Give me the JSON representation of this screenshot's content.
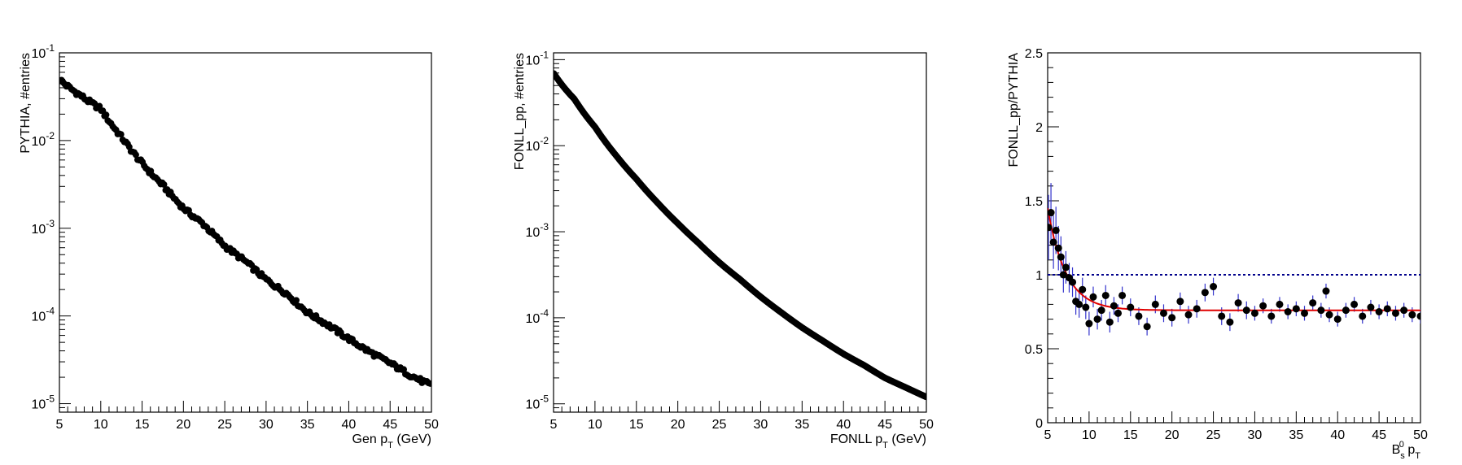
{
  "chart_data": [
    {
      "type": "scatter",
      "panel": "left",
      "xlabel_main": "Gen p",
      "xlabel_sub": "T",
      "xlabel_tail": " (GeV)",
      "ylabel": "PYTHIA, #entries",
      "xlim": [
        5,
        50
      ],
      "ylim": [
        8e-06,
        0.1
      ],
      "ylog": true,
      "x_ticks": [
        "5",
        "10",
        "15",
        "20",
        "25",
        "30",
        "35",
        "40",
        "45",
        "50"
      ],
      "y_ticks": [
        {
          "base": "10",
          "exp": "-1",
          "value": 0.1
        },
        {
          "base": "10",
          "exp": "-2",
          "value": 0.01
        },
        {
          "base": "10",
          "exp": "-3",
          "value": 0.001
        },
        {
          "base": "10",
          "exp": "-4",
          "value": 0.0001
        },
        {
          "base": "10",
          "exp": "-5",
          "value": 1e-05
        }
      ],
      "series": [
        {
          "marker_color": "#000000",
          "model": "power-law",
          "x": [
            5.0,
            7.5,
            10.0,
            12.5,
            15.0,
            17.5,
            20.0,
            22.5,
            25.0,
            27.5,
            30.0,
            32.5,
            35.0,
            37.5,
            40.0,
            42.5,
            45.0,
            47.5,
            50.0
          ],
          "y": [
            0.05,
            0.033,
            0.023,
            0.011,
            0.0055,
            0.0031,
            0.0017,
            0.0011,
            0.00063,
            0.00042,
            0.00026,
            0.00018,
            0.00011,
            7.9e-05,
            5.5e-05,
            3.9e-05,
            2.9e-05,
            2.1e-05,
            1.6e-05
          ]
        }
      ]
    },
    {
      "type": "scatter",
      "panel": "middle",
      "xlabel_main": "FONLL p",
      "xlabel_sub": "T",
      "xlabel_tail": " (GeV)",
      "ylabel": "FONLL_pp, #entries",
      "xlim": [
        5,
        50
      ],
      "ylim": [
        8e-06,
        0.12
      ],
      "ylog": true,
      "x_ticks": [
        "5",
        "10",
        "15",
        "20",
        "25",
        "30",
        "35",
        "40",
        "45",
        "50"
      ],
      "y_ticks": [
        {
          "base": "10",
          "exp": "-1",
          "value": 0.1
        },
        {
          "base": "10",
          "exp": "-2",
          "value": 0.01
        },
        {
          "base": "10",
          "exp": "-3",
          "value": 0.001
        },
        {
          "base": "10",
          "exp": "-4",
          "value": 0.0001
        },
        {
          "base": "10",
          "exp": "-5",
          "value": 1e-05
        }
      ],
      "series": [
        {
          "marker_color": "#000000",
          "model": "smooth",
          "x": [
            5.0,
            7.5,
            10.0,
            12.5,
            15.0,
            17.5,
            20.0,
            22.5,
            25.0,
            27.5,
            30.0,
            32.5,
            35.0,
            37.5,
            40.0,
            42.5,
            45.0,
            47.5,
            50.0
          ],
          "y": [
            0.07,
            0.035,
            0.0165,
            0.0078,
            0.0041,
            0.0022,
            0.00125,
            0.00074,
            0.00044,
            0.00028,
            0.000175,
            0.000115,
            7.7e-05,
            5.4e-05,
            3.8e-05,
            2.8e-05,
            2e-05,
            1.55e-05,
            1.2e-05
          ]
        }
      ]
    },
    {
      "type": "scatter",
      "panel": "right",
      "xlabel_main": "B",
      "xlabel_sub": "s",
      "xlabel_sup": "0",
      "xlabel_tail": " p",
      "xlabel_tail_sub": "T",
      "ylabel": "FONLL_pp/PYTHIA",
      "xlim": [
        5,
        50
      ],
      "ylim": [
        0,
        2.5
      ],
      "ylog": false,
      "x_ticks": [
        "5",
        "10",
        "15",
        "20",
        "25",
        "30",
        "35",
        "40",
        "45",
        "50"
      ],
      "y_ticks": [
        {
          "label": "0",
          "value": 0
        },
        {
          "label": "0.5",
          "value": 0.5
        },
        {
          "label": "1",
          "value": 1
        },
        {
          "label": "1.5",
          "value": 1.5
        },
        {
          "label": "2",
          "value": 2
        },
        {
          "label": "2.5",
          "value": 2.5
        }
      ],
      "reference_line": {
        "y": 1.0,
        "color": "#00008b",
        "style": "dotted"
      },
      "fit_curve": {
        "color": "#e00000",
        "model": "exponential-plateau",
        "y_at_start": 1.45,
        "plateau": 0.76,
        "decay_length_gev": 2.2
      },
      "series": [
        {
          "marker_color": "#000000",
          "error_color": "#3333cc",
          "x": [
            5.1,
            5.4,
            5.7,
            6.0,
            6.3,
            6.6,
            6.9,
            7.2,
            7.6,
            8.0,
            8.4,
            8.8,
            9.2,
            9.6,
            10.0,
            10.5,
            11.0,
            11.5,
            12.0,
            12.5,
            13.0,
            13.5,
            14.0,
            15.0,
            16.0,
            17.0,
            18.0,
            19.0,
            20.0,
            21.0,
            22.0,
            23.0,
            24.0,
            25.0,
            26.0,
            27.0,
            28.0,
            29.0,
            30.0,
            31.0,
            32.0,
            33.0,
            34.0,
            35.0,
            36.0,
            37.0,
            38.0,
            38.6,
            39.0,
            40.0,
            41.0,
            42.0,
            43.0,
            44.0,
            45.0,
            46.0,
            47.0,
            48.0,
            49.0,
            50.0
          ],
          "y": [
            1.32,
            1.42,
            1.22,
            1.3,
            1.18,
            1.12,
            1.0,
            1.05,
            0.98,
            0.95,
            0.82,
            0.8,
            0.9,
            0.78,
            0.67,
            0.85,
            0.7,
            0.76,
            0.86,
            0.68,
            0.79,
            0.74,
            0.86,
            0.78,
            0.72,
            0.65,
            0.8,
            0.74,
            0.71,
            0.82,
            0.73,
            0.77,
            0.88,
            0.92,
            0.72,
            0.68,
            0.81,
            0.76,
            0.74,
            0.79,
            0.72,
            0.8,
            0.75,
            0.77,
            0.74,
            0.81,
            0.76,
            0.89,
            0.73,
            0.7,
            0.76,
            0.8,
            0.72,
            0.78,
            0.75,
            0.77,
            0.74,
            0.76,
            0.73,
            0.72
          ],
          "err": [
            0.22,
            0.2,
            0.18,
            0.16,
            0.15,
            0.14,
            0.12,
            0.11,
            0.1,
            0.1,
            0.09,
            0.09,
            0.08,
            0.08,
            0.08,
            0.07,
            0.07,
            0.07,
            0.07,
            0.07,
            0.06,
            0.06,
            0.06,
            0.06,
            0.06,
            0.06,
            0.06,
            0.06,
            0.06,
            0.06,
            0.06,
            0.06,
            0.06,
            0.06,
            0.06,
            0.06,
            0.06,
            0.06,
            0.05,
            0.05,
            0.05,
            0.05,
            0.05,
            0.05,
            0.05,
            0.05,
            0.05,
            0.05,
            0.05,
            0.05,
            0.05,
            0.05,
            0.05,
            0.05,
            0.05,
            0.05,
            0.05,
            0.05,
            0.05,
            0.05
          ]
        }
      ]
    }
  ]
}
